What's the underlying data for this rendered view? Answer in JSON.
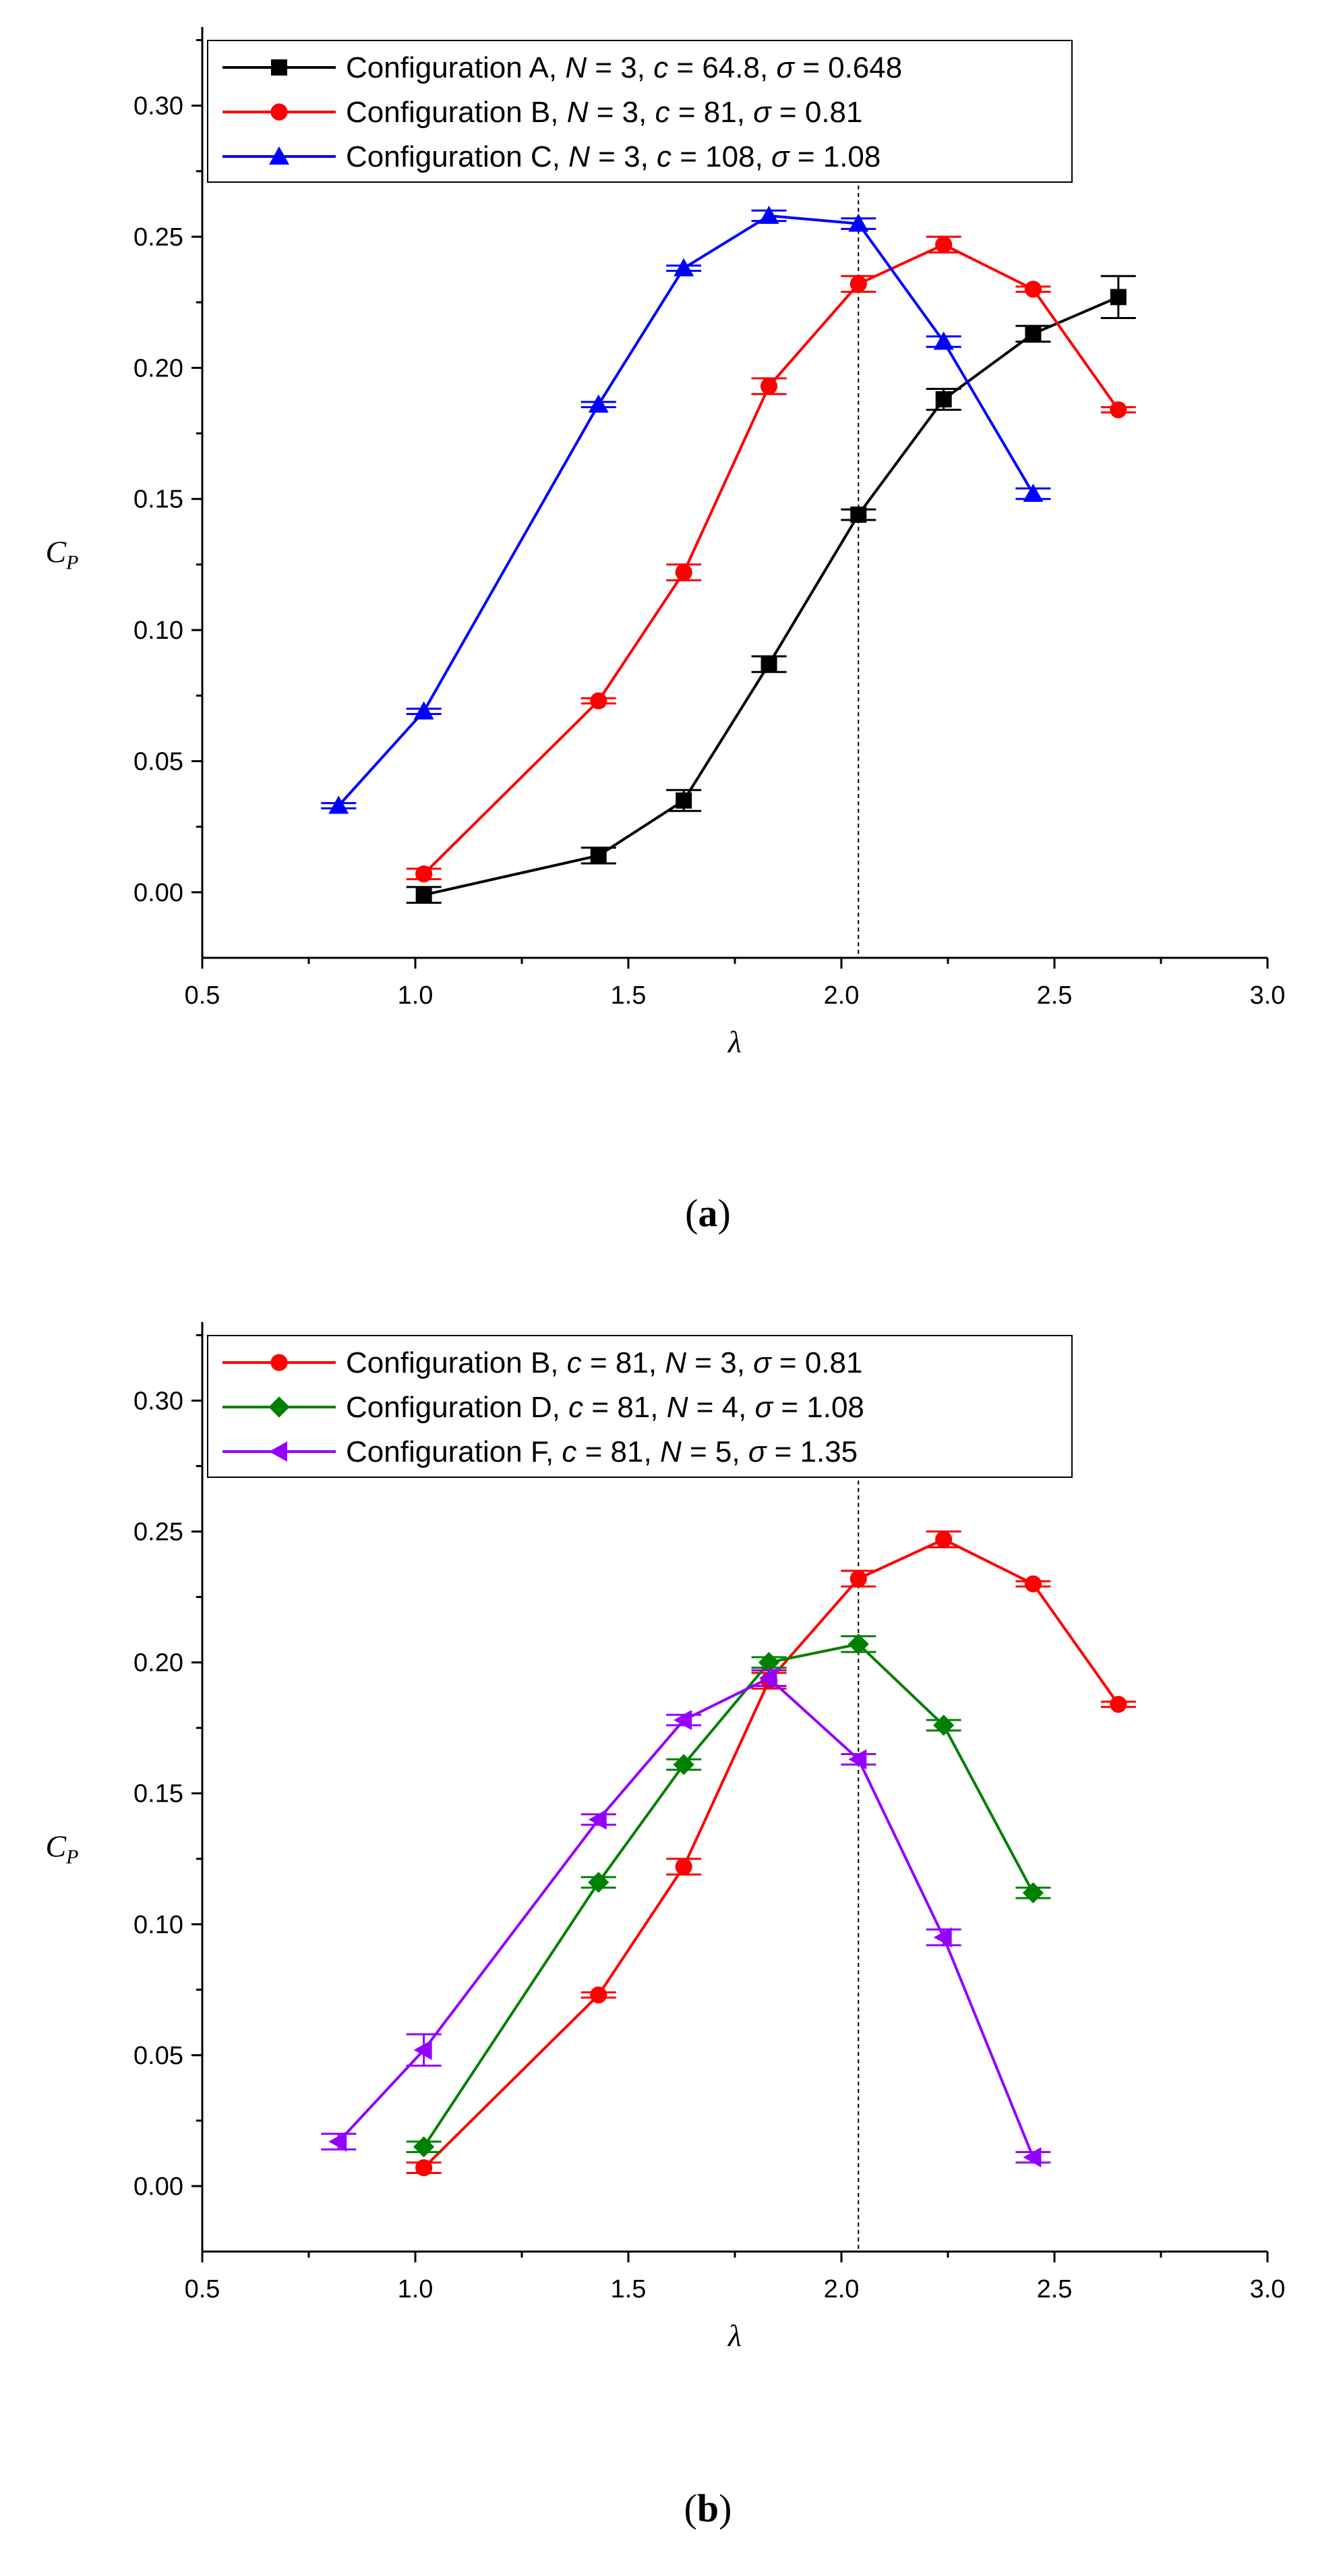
{
  "chart_data": [
    {
      "type": "line",
      "panel_label": "a",
      "xlabel": "λ",
      "ylabel_main": "C",
      "ylabel_sub": "P",
      "xlim": [
        0.5,
        3.0
      ],
      "ylim": [
        -0.025,
        0.33
      ],
      "xticks": [
        "0.5",
        "1.0",
        "1.5",
        "2.0",
        "2.5",
        "3.0"
      ],
      "yticks": [
        "0.00",
        "0.05",
        "0.10",
        "0.15",
        "0.20",
        "0.25",
        "0.30"
      ],
      "reference_line_x": 2.04,
      "legend_position": "top-left",
      "series": [
        {
          "name": "Configuration A",
          "legend": [
            [
              "Configuration A, ",
              "n"
            ],
            [
              "N",
              "i"
            ],
            [
              " = 3, ",
              "n"
            ],
            [
              "c",
              "i"
            ],
            [
              " = 64.8, ",
              "n"
            ],
            [
              "σ",
              "i"
            ],
            [
              " = 0.648",
              "n"
            ]
          ],
          "color": "#000000",
          "marker": "square",
          "x": [
            1.02,
            1.43,
            1.63,
            1.83,
            2.04,
            2.24,
            2.45,
            2.65
          ],
          "y": [
            -0.001,
            0.014,
            0.035,
            0.087,
            0.144,
            0.188,
            0.213,
            0.227
          ],
          "err": [
            0.003,
            0.003,
            0.004,
            0.003,
            0.002,
            0.004,
            0.003,
            0.008
          ]
        },
        {
          "name": "Configuration B",
          "legend": [
            [
              "Configuration B, ",
              "n"
            ],
            [
              "N",
              "i"
            ],
            [
              " = 3, ",
              "n"
            ],
            [
              "c",
              "i"
            ],
            [
              " = 81, ",
              "n"
            ],
            [
              "σ",
              "i"
            ],
            [
              " = 0.81",
              "n"
            ]
          ],
          "color": "#ff0000",
          "marker": "circle",
          "x": [
            1.02,
            1.43,
            1.63,
            1.83,
            2.04,
            2.24,
            2.45,
            2.65
          ],
          "y": [
            0.007,
            0.073,
            0.122,
            0.193,
            0.232,
            0.247,
            0.23,
            0.184
          ],
          "err": [
            0.002,
            0.001,
            0.003,
            0.003,
            0.003,
            0.003,
            0.001,
            0.001
          ]
        },
        {
          "name": "Configuration C",
          "legend": [
            [
              "Configuration C, ",
              "n"
            ],
            [
              "N",
              "i"
            ],
            [
              " = 3, ",
              "n"
            ],
            [
              "c",
              "i"
            ],
            [
              " = 108, ",
              "n"
            ],
            [
              "σ",
              "i"
            ],
            [
              " = 1.08",
              "n"
            ]
          ],
          "color": "#0000ff",
          "marker": "triangle-up",
          "x": [
            0.82,
            1.02,
            1.43,
            1.63,
            1.83,
            2.04,
            2.24,
            2.45
          ],
          "y": [
            0.033,
            0.069,
            0.186,
            0.238,
            0.258,
            0.255,
            0.21,
            0.152
          ],
          "err": [
            0.001,
            0.001,
            0.001,
            0.001,
            0.002,
            0.002,
            0.002,
            0.002
          ]
        }
      ]
    },
    {
      "type": "line",
      "panel_label": "b",
      "xlabel": "λ",
      "ylabel_main": "C",
      "ylabel_sub": "P",
      "xlim": [
        0.5,
        3.0
      ],
      "ylim": [
        -0.025,
        0.33
      ],
      "xticks": [
        "0.5",
        "1.0",
        "1.5",
        "2.0",
        "2.5",
        "3.0"
      ],
      "yticks": [
        "0.00",
        "0.05",
        "0.10",
        "0.15",
        "0.20",
        "0.25",
        "0.30"
      ],
      "reference_line_x": 2.04,
      "legend_position": "top-left",
      "series": [
        {
          "name": "Configuration B",
          "legend": [
            [
              "Configuration B, ",
              "n"
            ],
            [
              "c",
              "i"
            ],
            [
              " = 81, ",
              "n"
            ],
            [
              "N",
              "i"
            ],
            [
              " = 3, ",
              "n"
            ],
            [
              "σ",
              "i"
            ],
            [
              " = 0.81",
              "n"
            ]
          ],
          "color": "#ff0000",
          "marker": "circle",
          "x": [
            1.02,
            1.43,
            1.63,
            1.83,
            2.04,
            2.24,
            2.45,
            2.65
          ],
          "y": [
            0.007,
            0.073,
            0.122,
            0.193,
            0.232,
            0.247,
            0.23,
            0.184
          ],
          "err": [
            0.002,
            0.001,
            0.003,
            0.003,
            0.003,
            0.003,
            0.001,
            0.001
          ]
        },
        {
          "name": "Configuration D",
          "legend": [
            [
              "Configuration D, ",
              "n"
            ],
            [
              "c",
              "i"
            ],
            [
              " = 81, ",
              "n"
            ],
            [
              "N",
              "i"
            ],
            [
              " = 4, ",
              "n"
            ],
            [
              "σ",
              "i"
            ],
            [
              " = 1.08",
              "n"
            ]
          ],
          "color": "#008000",
          "marker": "diamond",
          "x": [
            1.02,
            1.43,
            1.63,
            1.83,
            2.04,
            2.24,
            2.45
          ],
          "y": [
            0.015,
            0.116,
            0.161,
            0.2,
            0.207,
            0.176,
            0.112
          ],
          "err": [
            0.002,
            0.002,
            0.002,
            0.002,
            0.003,
            0.002,
            0.002
          ]
        },
        {
          "name": "Configuration F",
          "legend": [
            [
              "Configuration F, ",
              "n"
            ],
            [
              "c",
              "i"
            ],
            [
              " = 81, ",
              "n"
            ],
            [
              "N",
              "i"
            ],
            [
              " = 5, ",
              "n"
            ],
            [
              "σ",
              "i"
            ],
            [
              " = 1.35",
              "n"
            ]
          ],
          "color": "#9400ff",
          "marker": "triangle-left",
          "x": [
            0.82,
            1.02,
            1.43,
            1.63,
            1.83,
            2.04,
            2.24,
            2.45
          ],
          "y": [
            0.017,
            0.052,
            0.14,
            0.178,
            0.194,
            0.163,
            0.095,
            0.011
          ],
          "err": [
            0.003,
            0.006,
            0.002,
            0.002,
            0.003,
            0.002,
            0.003,
            0.002
          ]
        }
      ]
    }
  ]
}
